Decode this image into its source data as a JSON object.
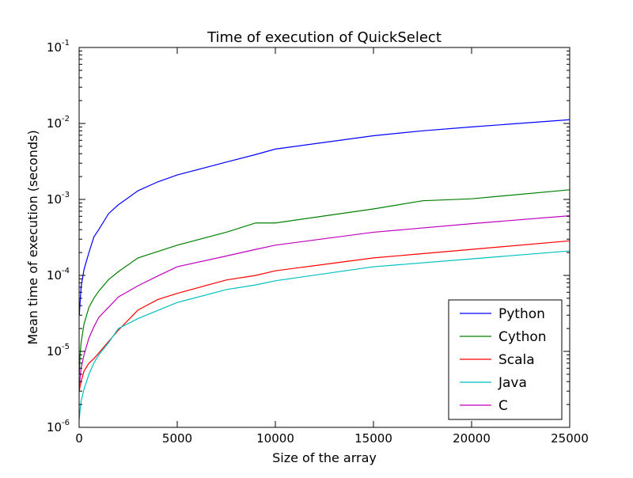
{
  "chart_data": {
    "type": "line",
    "title": "Time of execution of QuickSelect",
    "xlabel": "Size of the array",
    "ylabel": "Mean time of execution (seconds)",
    "xlim": [
      0,
      25000
    ],
    "ylim": [
      1e-06,
      0.1
    ],
    "yscale": "log",
    "xticks": [
      0,
      5000,
      10000,
      15000,
      20000,
      25000
    ],
    "xtick_labels": [
      "0",
      "5000",
      "10000",
      "15000",
      "20000",
      "25000"
    ],
    "yticks": [
      1e-06,
      1e-05,
      0.0001,
      0.001,
      0.01,
      0.1
    ],
    "ytick_labels": [
      {
        "base": "10",
        "exp": "-6"
      },
      {
        "base": "10",
        "exp": "-5"
      },
      {
        "base": "10",
        "exp": "-4"
      },
      {
        "base": "10",
        "exp": "-3"
      },
      {
        "base": "10",
        "exp": "-2"
      },
      {
        "base": "10",
        "exp": "-1"
      }
    ],
    "grid": false,
    "legend_position": "lower-right",
    "series": [
      {
        "name": "Python",
        "color": "#0000ff",
        "points": [
          [
            10,
            3e-05
          ],
          [
            50,
            4.5e-05
          ],
          [
            100,
            7e-05
          ],
          [
            250,
            0.00012
          ],
          [
            500,
            0.0002
          ],
          [
            750,
            0.00032
          ],
          [
            1000,
            0.0004
          ],
          [
            1500,
            0.00065
          ],
          [
            2000,
            0.00085
          ],
          [
            3000,
            0.0013
          ],
          [
            4000,
            0.0017
          ],
          [
            5000,
            0.0021
          ],
          [
            7500,
            0.0031
          ],
          [
            9000,
            0.0039
          ],
          [
            10000,
            0.0046
          ],
          [
            15000,
            0.0069
          ],
          [
            17500,
            0.008
          ],
          [
            20000,
            0.009
          ],
          [
            25000,
            0.0112
          ]
        ]
      },
      {
        "name": "Cython",
        "color": "#008000",
        "points": [
          [
            10,
            5e-06
          ],
          [
            50,
            9e-06
          ],
          [
            100,
            1.3e-05
          ],
          [
            250,
            2.3e-05
          ],
          [
            500,
            3.8e-05
          ],
          [
            750,
            5e-05
          ],
          [
            1000,
            6.2e-05
          ],
          [
            1500,
            8.8e-05
          ],
          [
            2000,
            0.000112
          ],
          [
            3000,
            0.00017
          ],
          [
            5000,
            0.00025
          ],
          [
            7500,
            0.00037
          ],
          [
            9000,
            0.00049
          ],
          [
            10000,
            0.00049
          ],
          [
            15000,
            0.00075
          ],
          [
            17500,
            0.00096
          ],
          [
            20000,
            0.00102
          ],
          [
            25000,
            0.00134
          ]
        ]
      },
      {
        "name": "Scala",
        "color": "#ff0000",
        "points": [
          [
            10,
            3e-06
          ],
          [
            50,
            3.5e-06
          ],
          [
            100,
            4e-06
          ],
          [
            250,
            5.5e-06
          ],
          [
            500,
            7e-06
          ],
          [
            750,
            8e-06
          ],
          [
            1000,
            9.5e-06
          ],
          [
            1500,
            1.35e-05
          ],
          [
            2000,
            1.9e-05
          ],
          [
            3000,
            3.5e-05
          ],
          [
            4000,
            4.8e-05
          ],
          [
            5000,
            5.8e-05
          ],
          [
            7500,
            8.7e-05
          ],
          [
            9000,
            0.0001
          ],
          [
            10000,
            0.000115
          ],
          [
            15000,
            0.00017
          ],
          [
            20000,
            0.00022
          ],
          [
            25000,
            0.000285
          ]
        ]
      },
      {
        "name": "Java",
        "color": "#00bfbf",
        "points": [
          [
            10,
            1.3e-06
          ],
          [
            50,
            1.7e-06
          ],
          [
            100,
            2.2e-06
          ],
          [
            250,
            3.2e-06
          ],
          [
            500,
            5e-06
          ],
          [
            750,
            7e-06
          ],
          [
            1000,
            9e-06
          ],
          [
            1500,
            1.3e-05
          ],
          [
            2000,
            2e-05
          ],
          [
            3000,
            2.7e-05
          ],
          [
            5000,
            4.4e-05
          ],
          [
            7500,
            6.5e-05
          ],
          [
            9000,
            7.5e-05
          ],
          [
            10000,
            8.5e-05
          ],
          [
            15000,
            0.00013
          ],
          [
            20000,
            0.000165
          ],
          [
            25000,
            0.00021
          ]
        ]
      },
      {
        "name": "C",
        "color": "#bf00bf",
        "points": [
          [
            10,
            3.5e-06
          ],
          [
            50,
            4.5e-06
          ],
          [
            100,
            6e-06
          ],
          [
            250,
            9e-06
          ],
          [
            500,
            1.5e-05
          ],
          [
            750,
            2.1e-05
          ],
          [
            1000,
            2.8e-05
          ],
          [
            1500,
            3.8e-05
          ],
          [
            2000,
            5.2e-05
          ],
          [
            3000,
            7.3e-05
          ],
          [
            4000,
            9.8e-05
          ],
          [
            5000,
            0.00013
          ],
          [
            7500,
            0.00018
          ],
          [
            9000,
            0.00022
          ],
          [
            10000,
            0.00025
          ],
          [
            15000,
            0.00037
          ],
          [
            20000,
            0.00048
          ],
          [
            25000,
            0.00061
          ]
        ]
      }
    ]
  }
}
